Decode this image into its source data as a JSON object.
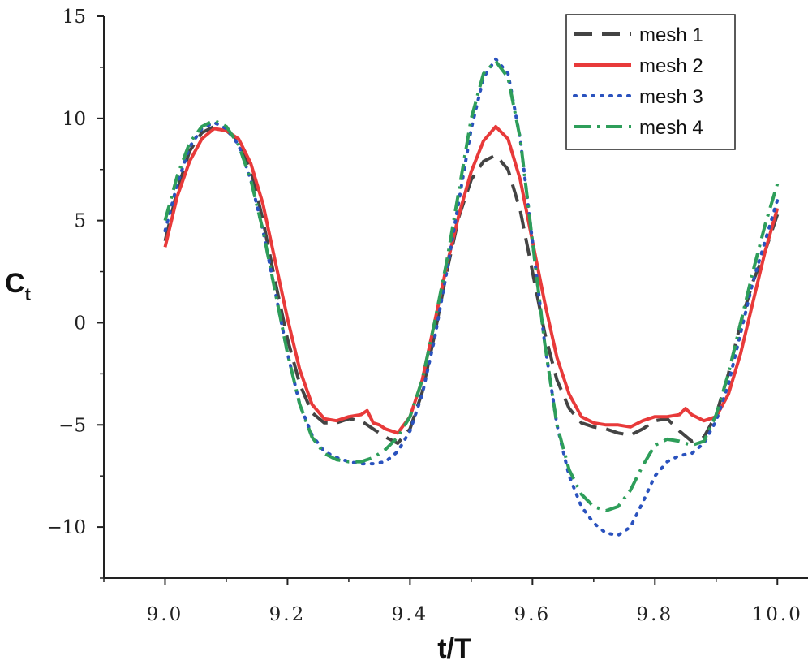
{
  "chart_data": {
    "type": "line",
    "title": "",
    "xlabel": "t/T",
    "ylabel": {
      "main": "C",
      "sub": "t"
    },
    "xlim": [
      8.9,
      10.05
    ],
    "ylim": [
      -12.5,
      15
    ],
    "xticks": [
      9.0,
      9.2,
      9.4,
      9.6,
      9.8,
      10.0
    ],
    "xtick_labels": [
      "9.0",
      "9.2",
      "9.4",
      "9.6",
      "9.8",
      "10.0"
    ],
    "yticks": [
      15,
      10,
      5,
      0,
      -5,
      -10
    ],
    "ytick_labels": [
      "15",
      "10",
      "5",
      "0",
      "−10"
    ],
    "ytick_labels_all": [
      "15",
      "10",
      "5",
      "0",
      "−5",
      "−10"
    ],
    "legend_position": "top-right",
    "series": [
      {
        "name": "mesh 1",
        "color": "#444444",
        "dash": "dashed",
        "points": [
          [
            9.0,
            4.0
          ],
          [
            9.02,
            6.5
          ],
          [
            9.04,
            8.4
          ],
          [
            9.06,
            9.3
          ],
          [
            9.08,
            9.6
          ],
          [
            9.1,
            9.4
          ],
          [
            9.12,
            8.9
          ],
          [
            9.14,
            7.5
          ],
          [
            9.16,
            5.0
          ],
          [
            9.18,
            2.0
          ],
          [
            9.2,
            -0.8
          ],
          [
            9.22,
            -3.0
          ],
          [
            9.24,
            -4.4
          ],
          [
            9.26,
            -4.9
          ],
          [
            9.28,
            -4.9
          ],
          [
            9.3,
            -4.7
          ],
          [
            9.32,
            -4.8
          ],
          [
            9.34,
            -5.2
          ],
          [
            9.36,
            -5.6
          ],
          [
            9.38,
            -5.9
          ],
          [
            9.4,
            -5.2
          ],
          [
            9.42,
            -3.4
          ],
          [
            9.44,
            -0.6
          ],
          [
            9.46,
            2.5
          ],
          [
            9.48,
            5.2
          ],
          [
            9.5,
            7.0
          ],
          [
            9.52,
            7.9
          ],
          [
            9.54,
            8.2
          ],
          [
            9.56,
            7.5
          ],
          [
            9.58,
            5.5
          ],
          [
            9.6,
            2.5
          ],
          [
            9.62,
            -0.5
          ],
          [
            9.64,
            -2.8
          ],
          [
            9.66,
            -4.2
          ],
          [
            9.68,
            -4.9
          ],
          [
            9.7,
            -5.1
          ],
          [
            9.72,
            -5.2
          ],
          [
            9.74,
            -5.4
          ],
          [
            9.76,
            -5.5
          ],
          [
            9.78,
            -5.2
          ],
          [
            9.8,
            -4.8
          ],
          [
            9.82,
            -4.7
          ],
          [
            9.84,
            -5.3
          ],
          [
            9.86,
            -5.8
          ],
          [
            9.88,
            -5.6
          ],
          [
            9.9,
            -4.5
          ],
          [
            9.92,
            -2.5
          ],
          [
            9.94,
            0.0
          ],
          [
            9.96,
            2.0
          ],
          [
            9.98,
            3.5
          ],
          [
            10.0,
            5.3
          ]
        ]
      },
      {
        "name": "mesh 2",
        "color": "#e83a3a",
        "dash": "solid",
        "points": [
          [
            9.0,
            3.7
          ],
          [
            9.02,
            6.2
          ],
          [
            9.04,
            7.9
          ],
          [
            9.06,
            9.0
          ],
          [
            9.08,
            9.5
          ],
          [
            9.1,
            9.4
          ],
          [
            9.12,
            9.0
          ],
          [
            9.14,
            7.8
          ],
          [
            9.16,
            5.8
          ],
          [
            9.18,
            3.0
          ],
          [
            9.2,
            0.2
          ],
          [
            9.22,
            -2.3
          ],
          [
            9.24,
            -4.0
          ],
          [
            9.26,
            -4.7
          ],
          [
            9.28,
            -4.8
          ],
          [
            9.3,
            -4.6
          ],
          [
            9.32,
            -4.5
          ],
          [
            9.33,
            -4.3
          ],
          [
            9.34,
            -4.9
          ],
          [
            9.35,
            -5.0
          ],
          [
            9.36,
            -5.2
          ],
          [
            9.38,
            -5.4
          ],
          [
            9.4,
            -4.6
          ],
          [
            9.42,
            -2.8
          ],
          [
            9.44,
            0.0
          ],
          [
            9.46,
            2.8
          ],
          [
            9.48,
            5.3
          ],
          [
            9.5,
            7.4
          ],
          [
            9.52,
            8.9
          ],
          [
            9.54,
            9.6
          ],
          [
            9.56,
            9.0
          ],
          [
            9.58,
            7.0
          ],
          [
            9.6,
            4.0
          ],
          [
            9.62,
            1.0
          ],
          [
            9.64,
            -1.7
          ],
          [
            9.66,
            -3.5
          ],
          [
            9.68,
            -4.6
          ],
          [
            9.7,
            -4.9
          ],
          [
            9.72,
            -5.0
          ],
          [
            9.74,
            -5.0
          ],
          [
            9.76,
            -5.1
          ],
          [
            9.78,
            -4.8
          ],
          [
            9.8,
            -4.6
          ],
          [
            9.82,
            -4.6
          ],
          [
            9.84,
            -4.5
          ],
          [
            9.85,
            -4.2
          ],
          [
            9.86,
            -4.5
          ],
          [
            9.88,
            -4.8
          ],
          [
            9.9,
            -4.6
          ],
          [
            9.92,
            -3.5
          ],
          [
            9.94,
            -1.5
          ],
          [
            9.96,
            1.0
          ],
          [
            9.98,
            3.5
          ],
          [
            10.0,
            5.6
          ]
        ]
      },
      {
        "name": "mesh 3",
        "color": "#2a52be",
        "dash": "dotted",
        "points": [
          [
            9.0,
            4.5
          ],
          [
            9.02,
            6.8
          ],
          [
            9.04,
            8.6
          ],
          [
            9.06,
            9.5
          ],
          [
            9.08,
            9.8
          ],
          [
            9.1,
            9.5
          ],
          [
            9.12,
            8.7
          ],
          [
            9.14,
            7.0
          ],
          [
            9.16,
            4.5
          ],
          [
            9.18,
            1.5
          ],
          [
            9.2,
            -1.5
          ],
          [
            9.22,
            -4.0
          ],
          [
            9.24,
            -5.5
          ],
          [
            9.26,
            -6.3
          ],
          [
            9.28,
            -6.6
          ],
          [
            9.3,
            -6.8
          ],
          [
            9.32,
            -6.9
          ],
          [
            9.34,
            -6.9
          ],
          [
            9.36,
            -6.8
          ],
          [
            9.38,
            -6.3
          ],
          [
            9.4,
            -5.3
          ],
          [
            9.42,
            -3.5
          ],
          [
            9.44,
            -0.8
          ],
          [
            9.46,
            2.5
          ],
          [
            9.48,
            6.0
          ],
          [
            9.5,
            9.5
          ],
          [
            9.52,
            12.0
          ],
          [
            9.54,
            12.9
          ],
          [
            9.56,
            12.2
          ],
          [
            9.58,
            9.0
          ],
          [
            9.6,
            4.0
          ],
          [
            9.62,
            -1.0
          ],
          [
            9.64,
            -5.0
          ],
          [
            9.66,
            -7.5
          ],
          [
            9.68,
            -9.0
          ],
          [
            9.7,
            -9.8
          ],
          [
            9.72,
            -10.3
          ],
          [
            9.74,
            -10.4
          ],
          [
            9.76,
            -10.0
          ],
          [
            9.78,
            -8.8
          ],
          [
            9.8,
            -7.5
          ],
          [
            9.82,
            -6.8
          ],
          [
            9.84,
            -6.5
          ],
          [
            9.86,
            -6.4
          ],
          [
            9.88,
            -5.9
          ],
          [
            9.9,
            -4.8
          ],
          [
            9.92,
            -3.0
          ],
          [
            9.94,
            -0.5
          ],
          [
            9.96,
            2.0
          ],
          [
            9.98,
            4.0
          ],
          [
            10.0,
            6.0
          ]
        ]
      },
      {
        "name": "mesh 4",
        "color": "#2e9e5a",
        "dash": "dashdot",
        "points": [
          [
            9.0,
            5.0
          ],
          [
            9.02,
            7.2
          ],
          [
            9.04,
            8.8
          ],
          [
            9.06,
            9.6
          ],
          [
            9.08,
            9.9
          ],
          [
            9.1,
            9.6
          ],
          [
            9.12,
            8.7
          ],
          [
            9.14,
            7.0
          ],
          [
            9.16,
            4.5
          ],
          [
            9.18,
            1.5
          ],
          [
            9.2,
            -1.5
          ],
          [
            9.22,
            -4.0
          ],
          [
            9.24,
            -5.6
          ],
          [
            9.26,
            -6.4
          ],
          [
            9.28,
            -6.7
          ],
          [
            9.3,
            -6.8
          ],
          [
            9.32,
            -6.8
          ],
          [
            9.34,
            -6.6
          ],
          [
            9.36,
            -6.2
          ],
          [
            9.38,
            -5.6
          ],
          [
            9.4,
            -4.6
          ],
          [
            9.42,
            -2.8
          ],
          [
            9.44,
            0.0
          ],
          [
            9.46,
            3.0
          ],
          [
            9.48,
            6.5
          ],
          [
            9.5,
            10.0
          ],
          [
            9.52,
            12.2
          ],
          [
            9.54,
            12.8
          ],
          [
            9.56,
            12.0
          ],
          [
            9.58,
            9.0
          ],
          [
            9.6,
            4.0
          ],
          [
            9.62,
            -1.0
          ],
          [
            9.64,
            -5.0
          ],
          [
            9.66,
            -7.2
          ],
          [
            9.68,
            -8.4
          ],
          [
            9.7,
            -9.0
          ],
          [
            9.72,
            -9.2
          ],
          [
            9.74,
            -9.0
          ],
          [
            9.76,
            -8.2
          ],
          [
            9.78,
            -7.0
          ],
          [
            9.8,
            -6.0
          ],
          [
            9.82,
            -5.7
          ],
          [
            9.84,
            -5.8
          ],
          [
            9.86,
            -6.0
          ],
          [
            9.88,
            -5.8
          ],
          [
            9.9,
            -4.5
          ],
          [
            9.92,
            -2.5
          ],
          [
            9.94,
            0.0
          ],
          [
            9.96,
            2.5
          ],
          [
            9.98,
            4.8
          ],
          [
            10.0,
            6.8
          ]
        ]
      }
    ]
  }
}
